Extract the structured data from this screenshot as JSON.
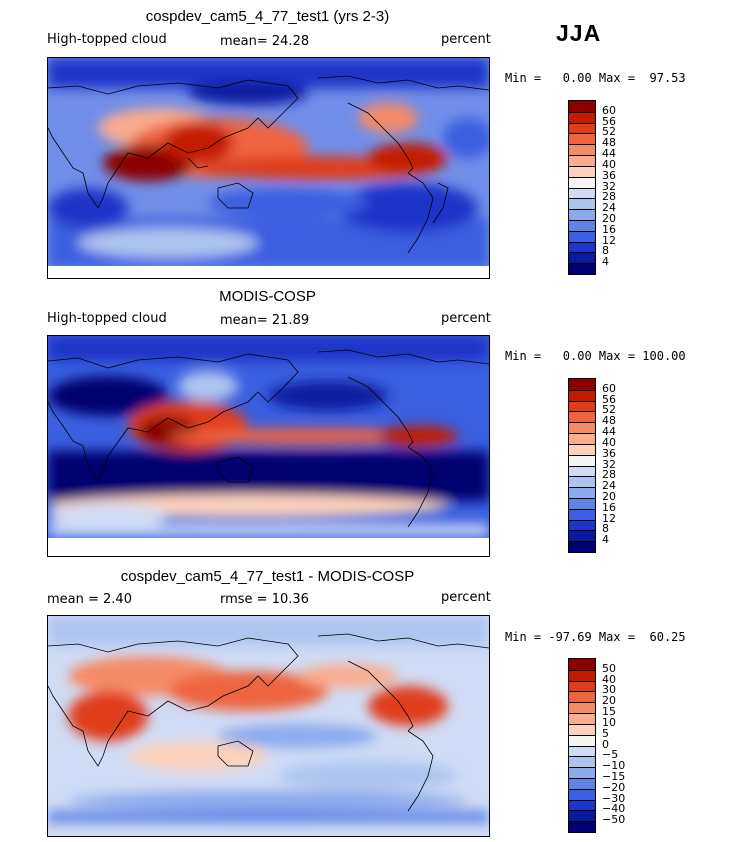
{
  "season": "JJA",
  "panels": [
    {
      "title": "cospdev_cam5_4_77_test1 (yrs 2-3)",
      "left_label": "High-topped cloud",
      "mid_label": "mean=  24.28",
      "right_label": "percent",
      "minmax": "Min =   0.00 Max =  97.53",
      "colorbar": {
        "ticks": [
          "60",
          "56",
          "52",
          "48",
          "44",
          "40",
          "36",
          "32",
          "28",
          "24",
          "20",
          "16",
          "12",
          "8",
          "4"
        ],
        "colors": [
          "#8c0000",
          "#c41a00",
          "#e03c1a",
          "#ee6440",
          "#f58a66",
          "#f9ac8e",
          "#fcd2bc",
          "#f5f5f5",
          "#d0dcf5",
          "#aec4f0",
          "#8aaaec",
          "#5f84e6",
          "#3a5fe0",
          "#1c36c8",
          "#0a1aa0",
          "#000070"
        ]
      }
    },
    {
      "title": "MODIS-COSP",
      "left_label": "High-topped cloud",
      "mid_label": "mean=  21.89",
      "right_label": "percent",
      "minmax": "Min =   0.00 Max = 100.00",
      "colorbar": {
        "ticks": [
          "60",
          "56",
          "52",
          "48",
          "44",
          "40",
          "36",
          "32",
          "28",
          "24",
          "20",
          "16",
          "12",
          "8",
          "4"
        ],
        "colors": [
          "#8c0000",
          "#c41a00",
          "#e03c1a",
          "#ee6440",
          "#f58a66",
          "#f9ac8e",
          "#fcd2bc",
          "#f5f5f5",
          "#d0dcf5",
          "#aec4f0",
          "#8aaaec",
          "#5f84e6",
          "#3a5fe0",
          "#1c36c8",
          "#0a1aa0",
          "#000070"
        ]
      }
    },
    {
      "title": "cospdev_cam5_4_77_test1 - MODIS-COSP",
      "left_label": "mean =    2.40",
      "mid_label": "rmse =   10.36",
      "right_label": "percent",
      "minmax": "Min = -97.69 Max =  60.25",
      "colorbar": {
        "ticks": [
          "50",
          "40",
          "30",
          "20",
          "15",
          "10",
          "5",
          "0",
          "−5",
          "−10",
          "−15",
          "−20",
          "−30",
          "−40",
          "−50"
        ],
        "colors": [
          "#8c0000",
          "#c41a00",
          "#e03c1a",
          "#ee6440",
          "#f58a66",
          "#f9ac8e",
          "#fcd2bc",
          "#f5f5f5",
          "#d0dcf5",
          "#aec4f0",
          "#8aaaec",
          "#5f84e6",
          "#3a5fe0",
          "#1c36c8",
          "#0a1aa0",
          "#000070"
        ]
      }
    }
  ],
  "chart_data": [
    {
      "type": "heatmap",
      "title": "cospdev_cam5_4_77_test1 (yrs 2-3)",
      "variable": "High-topped cloud",
      "units": "percent",
      "mean": 24.28,
      "min": 0.0,
      "max": 97.53,
      "contour_levels": [
        4,
        8,
        12,
        16,
        20,
        24,
        28,
        32,
        36,
        40,
        44,
        48,
        52,
        56,
        60
      ]
    },
    {
      "type": "heatmap",
      "title": "MODIS-COSP",
      "variable": "High-topped cloud",
      "units": "percent",
      "mean": 21.89,
      "min": 0.0,
      "max": 100.0,
      "contour_levels": [
        4,
        8,
        12,
        16,
        20,
        24,
        28,
        32,
        36,
        40,
        44,
        48,
        52,
        56,
        60
      ]
    },
    {
      "type": "heatmap",
      "title": "cospdev_cam5_4_77_test1 - MODIS-COSP",
      "units": "percent",
      "mean": 2.4,
      "rmse": 10.36,
      "min": -97.69,
      "max": 60.25,
      "contour_levels": [
        -50,
        -40,
        -30,
        -20,
        -15,
        -10,
        -5,
        0,
        5,
        10,
        15,
        20,
        30,
        40,
        50
      ]
    }
  ]
}
